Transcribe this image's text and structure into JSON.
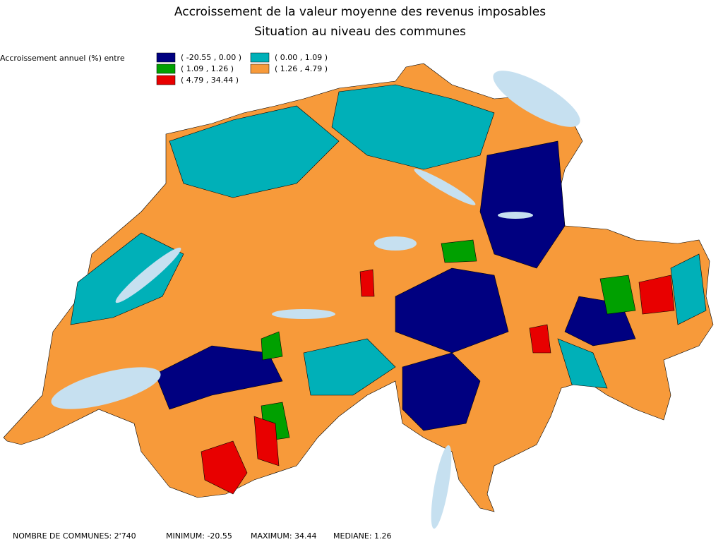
{
  "title": [
    "Accroissement de la valeur moyenne des revenus imposables",
    "Situation au niveau des communes"
  ],
  "legend": {
    "label": "Accroissement annuel (%) entre",
    "items": [
      {
        "label": "( -20.55 , 0.00 )",
        "color": "#000080"
      },
      {
        "label": "( 0.00 , 1.09 )",
        "color": "#00b0b8"
      },
      {
        "label": "( 1.09 , 1.26 )",
        "color": "#00a000"
      },
      {
        "label": "( 1.26 , 4.79 )",
        "color": "#f79a3a"
      },
      {
        "label": "( 4.79 , 34.44 )",
        "color": "#e80000"
      }
    ]
  },
  "footer": [
    "NOMBRE DE COMMUNES: 2'740",
    "MINIMUM: -20.55",
    "MAXIMUM: 34.44",
    "MEDIANE: 1.26"
  ]
}
